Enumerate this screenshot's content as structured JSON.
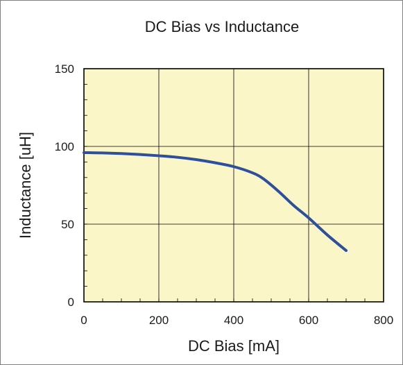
{
  "chart_data": {
    "type": "line",
    "title": "DC Bias vs Inductance",
    "xlabel": "DC Bias [mA]",
    "ylabel": "Inductance [uH]",
    "xlim": [
      0,
      800
    ],
    "ylim": [
      0,
      150
    ],
    "xticks": [
      0,
      200,
      400,
      600,
      800
    ],
    "yticks": [
      0,
      50,
      100,
      150
    ],
    "xtick_labels": [
      "0",
      "200",
      "400",
      "600",
      "800"
    ],
    "ytick_labels": [
      "0",
      "50",
      "100",
      "150"
    ],
    "grid": true,
    "legend": "none",
    "series": [
      {
        "color": "#2e4f9c",
        "x": [
          0,
          50,
          100,
          150,
          200,
          250,
          300,
          350,
          400,
          450,
          480,
          520,
          560,
          600,
          650,
          700
        ],
        "y": [
          96,
          95.8,
          95.4,
          94.8,
          94,
          93,
          91.5,
          89.5,
          87,
          83,
          79,
          71,
          62,
          54,
          43,
          33
        ]
      }
    ],
    "plot_background": "#fbf6c8"
  }
}
